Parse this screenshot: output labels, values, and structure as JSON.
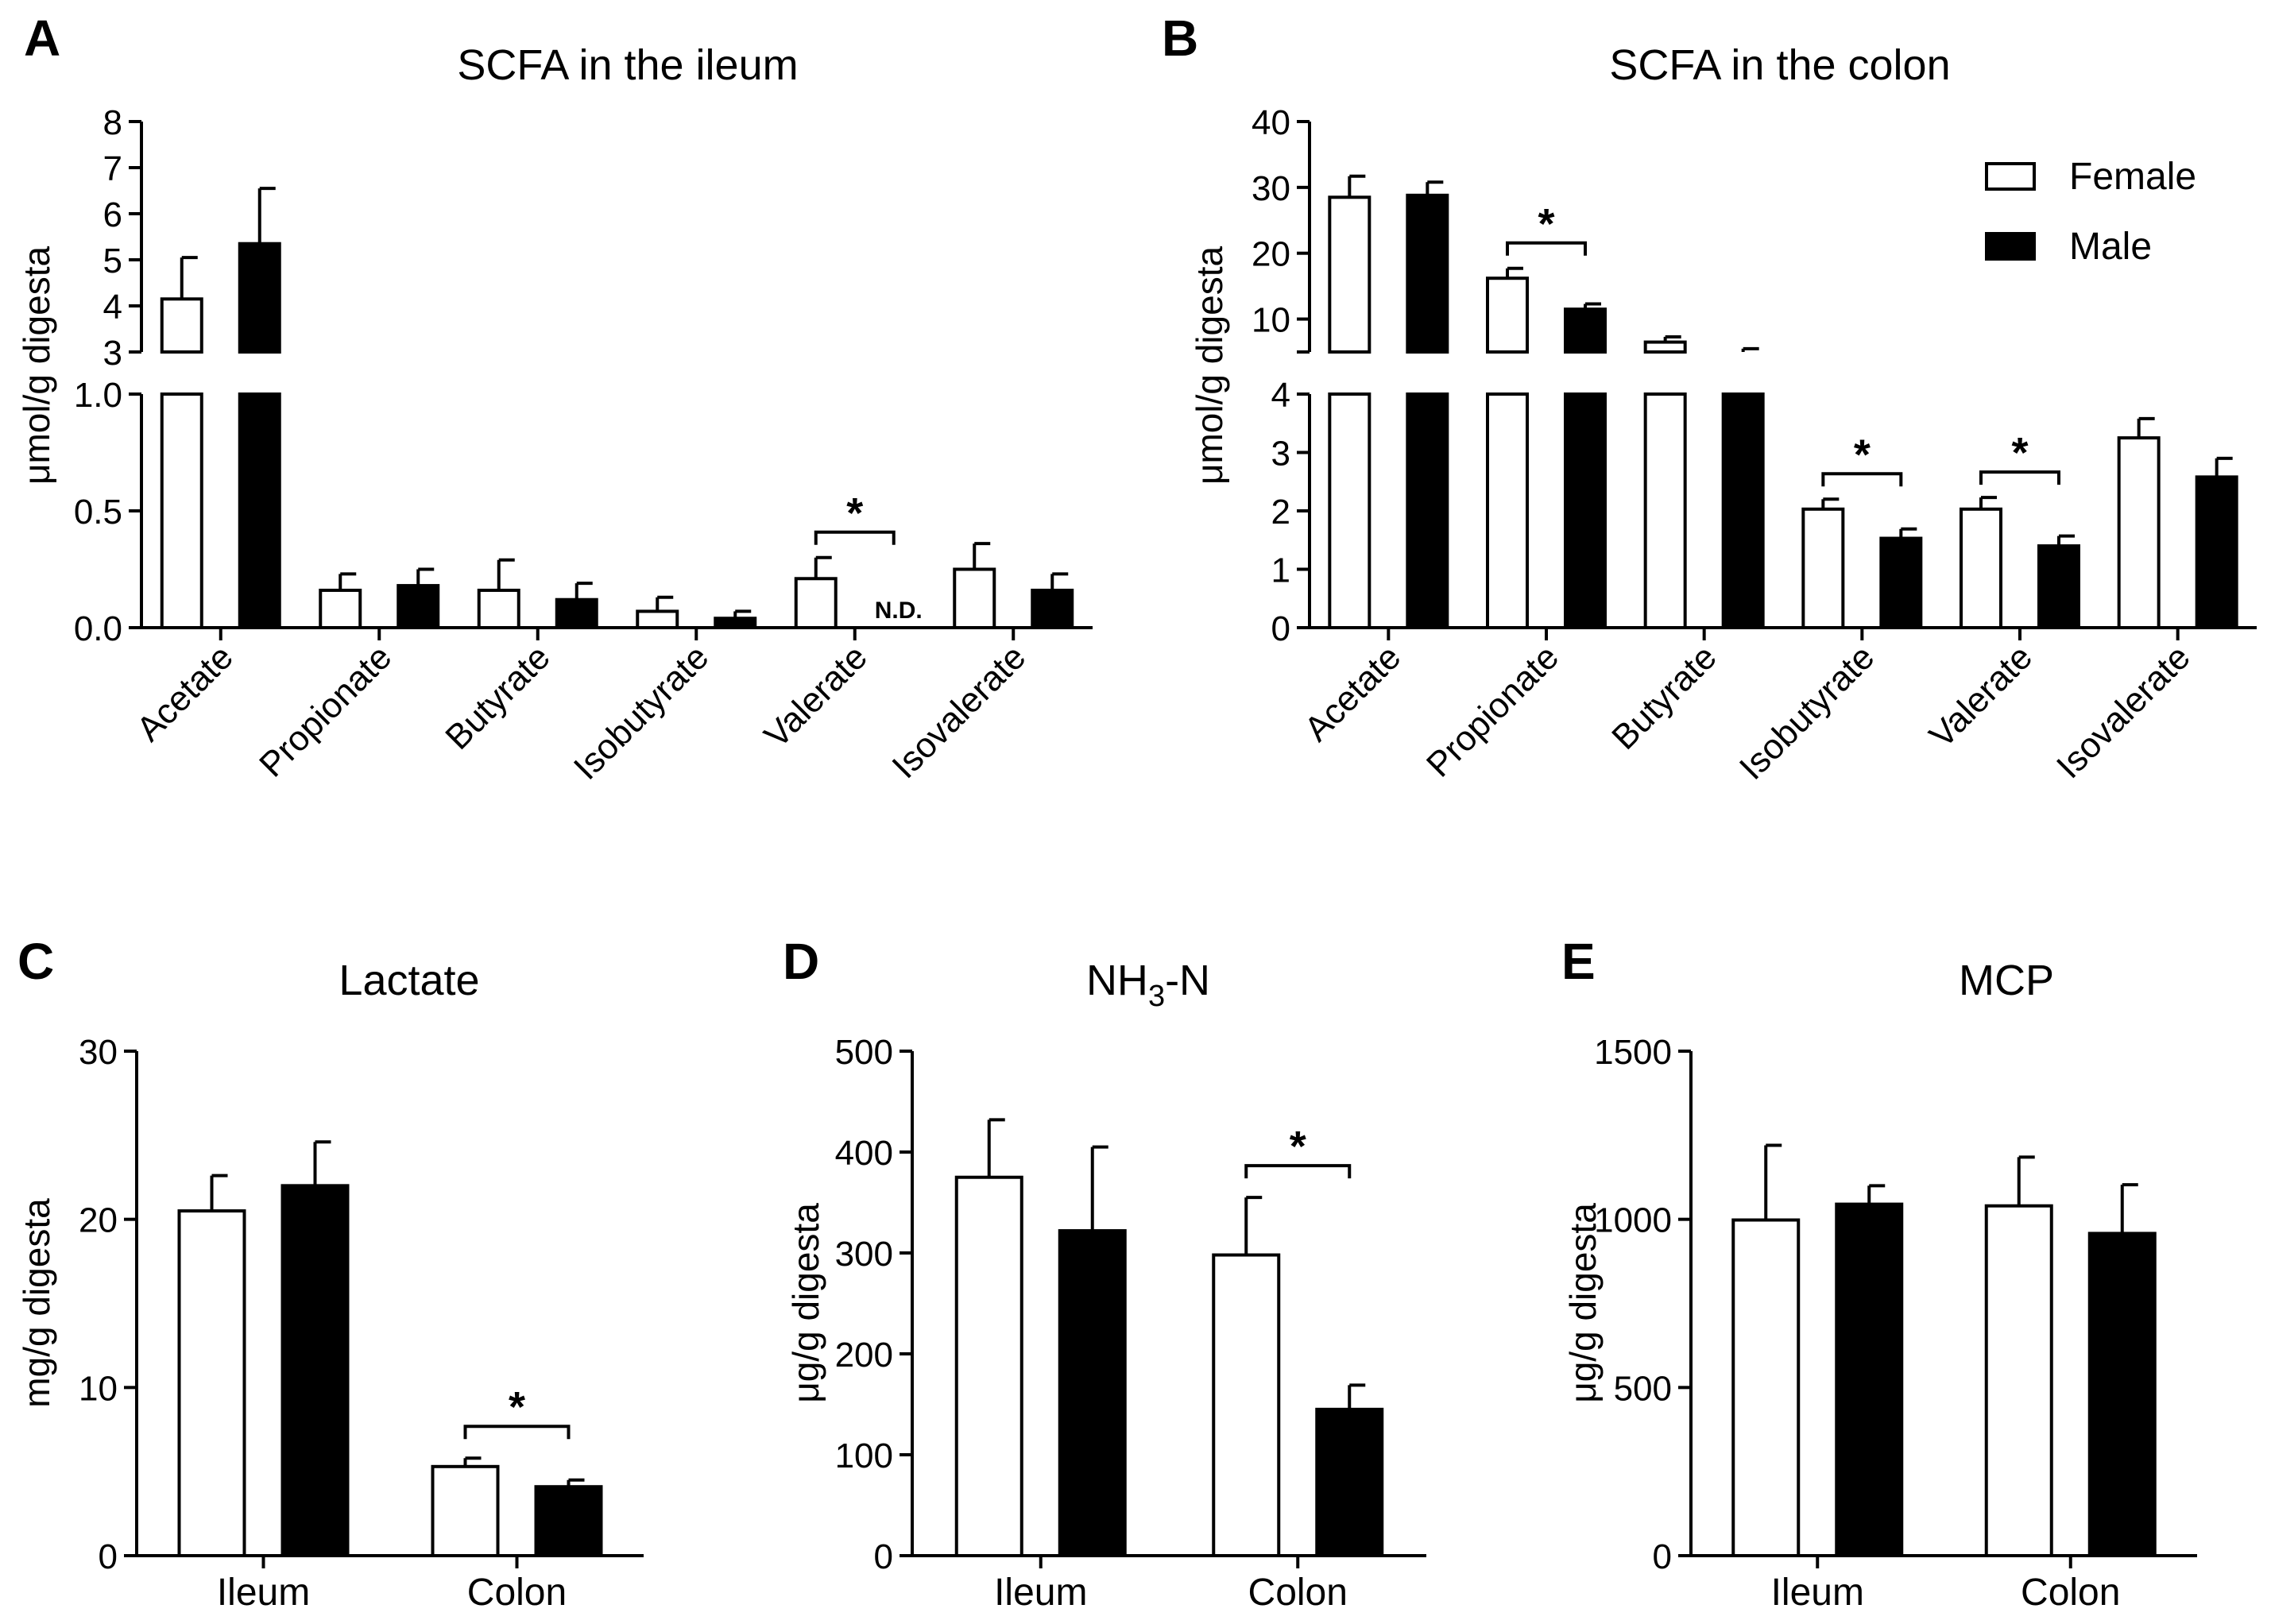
{
  "colors": {
    "female_fill": "#ffffff",
    "male_fill": "#000000",
    "ink": "#000000"
  },
  "legend": {
    "female_label": "Female",
    "male_label": "Male",
    "placement": "top-right of panel B"
  },
  "chart_data": [
    {
      "id": "A",
      "letter": "A",
      "type": "bar",
      "title": "SCFA in the ileum",
      "xlabel": "",
      "ylabel": "μmol/g digesta",
      "categories": [
        "Acetate",
        "Propionate",
        "Butyrate",
        "Isobutyrate",
        "Valerate",
        "Isovalerate"
      ],
      "series": [
        {
          "name": "Female",
          "values": [
            4.15,
            0.16,
            0.16,
            0.07,
            0.21,
            0.25
          ],
          "errors": [
            0.9,
            0.07,
            0.13,
            0.06,
            0.09,
            0.11
          ]
        },
        {
          "name": "Male",
          "values": [
            5.35,
            0.18,
            0.12,
            0.04,
            null,
            0.16
          ],
          "errors": [
            1.2,
            0.07,
            0.07,
            0.03,
            null,
            0.07
          ]
        }
      ],
      "broken_axis": true,
      "ylim_lower": [
        0,
        1.0
      ],
      "yticks_lower": [
        "0.0",
        "0.5",
        "1.0"
      ],
      "ylim_upper": [
        3,
        8
      ],
      "yticks_upper": [
        "3",
        "4",
        "5",
        "6",
        "7",
        "8"
      ],
      "significance": [
        {
          "category": "Valerate",
          "label": "*"
        }
      ],
      "notes": [
        {
          "category": "Valerate",
          "series": "Male",
          "text": "N.D."
        }
      ]
    },
    {
      "id": "B",
      "letter": "B",
      "type": "bar",
      "title": "SCFA in the colon",
      "xlabel": "",
      "ylabel": "μmol/g digesta",
      "categories": [
        "Acetate",
        "Propionate",
        "Butyrate",
        "Isobutyrate",
        "Valerate",
        "Isovalerate"
      ],
      "series": [
        {
          "name": "Female",
          "values": [
            28.5,
            16.2,
            6.5,
            2.03,
            2.03,
            3.25
          ],
          "errors": [
            3.2,
            1.5,
            0.8,
            0.17,
            0.2,
            0.33
          ]
        },
        {
          "name": "Male",
          "values": [
            28.8,
            11.5,
            5.0,
            1.53,
            1.4,
            2.58
          ],
          "errors": [
            2.0,
            0.8,
            0.5,
            0.16,
            0.17,
            0.32
          ]
        }
      ],
      "broken_axis": true,
      "ylim_lower": [
        0,
        4
      ],
      "yticks_lower": [
        "0",
        "1",
        "2",
        "3",
        "4"
      ],
      "ylim_upper": [
        5,
        40
      ],
      "yticks_upper": [
        "10",
        "20",
        "30",
        "40"
      ],
      "significance": [
        {
          "category": "Propionate",
          "label": "*"
        },
        {
          "category": "Isobutyrate",
          "label": "*"
        },
        {
          "category": "Valerate",
          "label": "*"
        }
      ],
      "notes": []
    },
    {
      "id": "C",
      "letter": "C",
      "type": "bar",
      "title": "Lactate",
      "xlabel": "",
      "ylabel": "mg/g digesta",
      "categories": [
        "Ileum",
        "Colon"
      ],
      "series": [
        {
          "name": "Female",
          "values": [
            20.5,
            5.3
          ],
          "errors": [
            2.1,
            0.5
          ]
        },
        {
          "name": "Male",
          "values": [
            22.0,
            4.1
          ],
          "errors": [
            2.6,
            0.4
          ]
        }
      ],
      "broken_axis": false,
      "ylim": [
        0,
        30
      ],
      "yticks": [
        "0",
        "10",
        "20",
        "30"
      ],
      "significance": [
        {
          "category": "Colon",
          "label": "*"
        }
      ],
      "notes": []
    },
    {
      "id": "D",
      "letter": "D",
      "type": "bar",
      "title": "NH3-N",
      "title_main": "NH",
      "title_sub": "3",
      "title_rest": "-N",
      "xlabel": "",
      "ylabel": "μg/g digesta",
      "categories": [
        "Ileum",
        "Colon"
      ],
      "series": [
        {
          "name": "Female",
          "values": [
            375,
            298
          ],
          "errors": [
            57,
            57
          ]
        },
        {
          "name": "Male",
          "values": [
            322,
            145
          ],
          "errors": [
            83,
            24
          ]
        }
      ],
      "broken_axis": false,
      "ylim": [
        0,
        500
      ],
      "yticks": [
        "0",
        "100",
        "200",
        "300",
        "400",
        "500"
      ],
      "significance": [
        {
          "category": "Colon",
          "label": "*"
        }
      ],
      "notes": []
    },
    {
      "id": "E",
      "letter": "E",
      "type": "bar",
      "title": "MCP",
      "xlabel": "",
      "ylabel": "μg/g digesta",
      "categories": [
        "Ileum",
        "Colon"
      ],
      "series": [
        {
          "name": "Female",
          "values": [
            998,
            1040
          ],
          "errors": [
            222,
            145
          ]
        },
        {
          "name": "Male",
          "values": [
            1045,
            958
          ],
          "errors": [
            55,
            145
          ]
        }
      ],
      "broken_axis": false,
      "ylim": [
        0,
        1500
      ],
      "yticks": [
        "0",
        "500",
        "1000",
        "1500"
      ],
      "significance": [],
      "notes": []
    }
  ]
}
